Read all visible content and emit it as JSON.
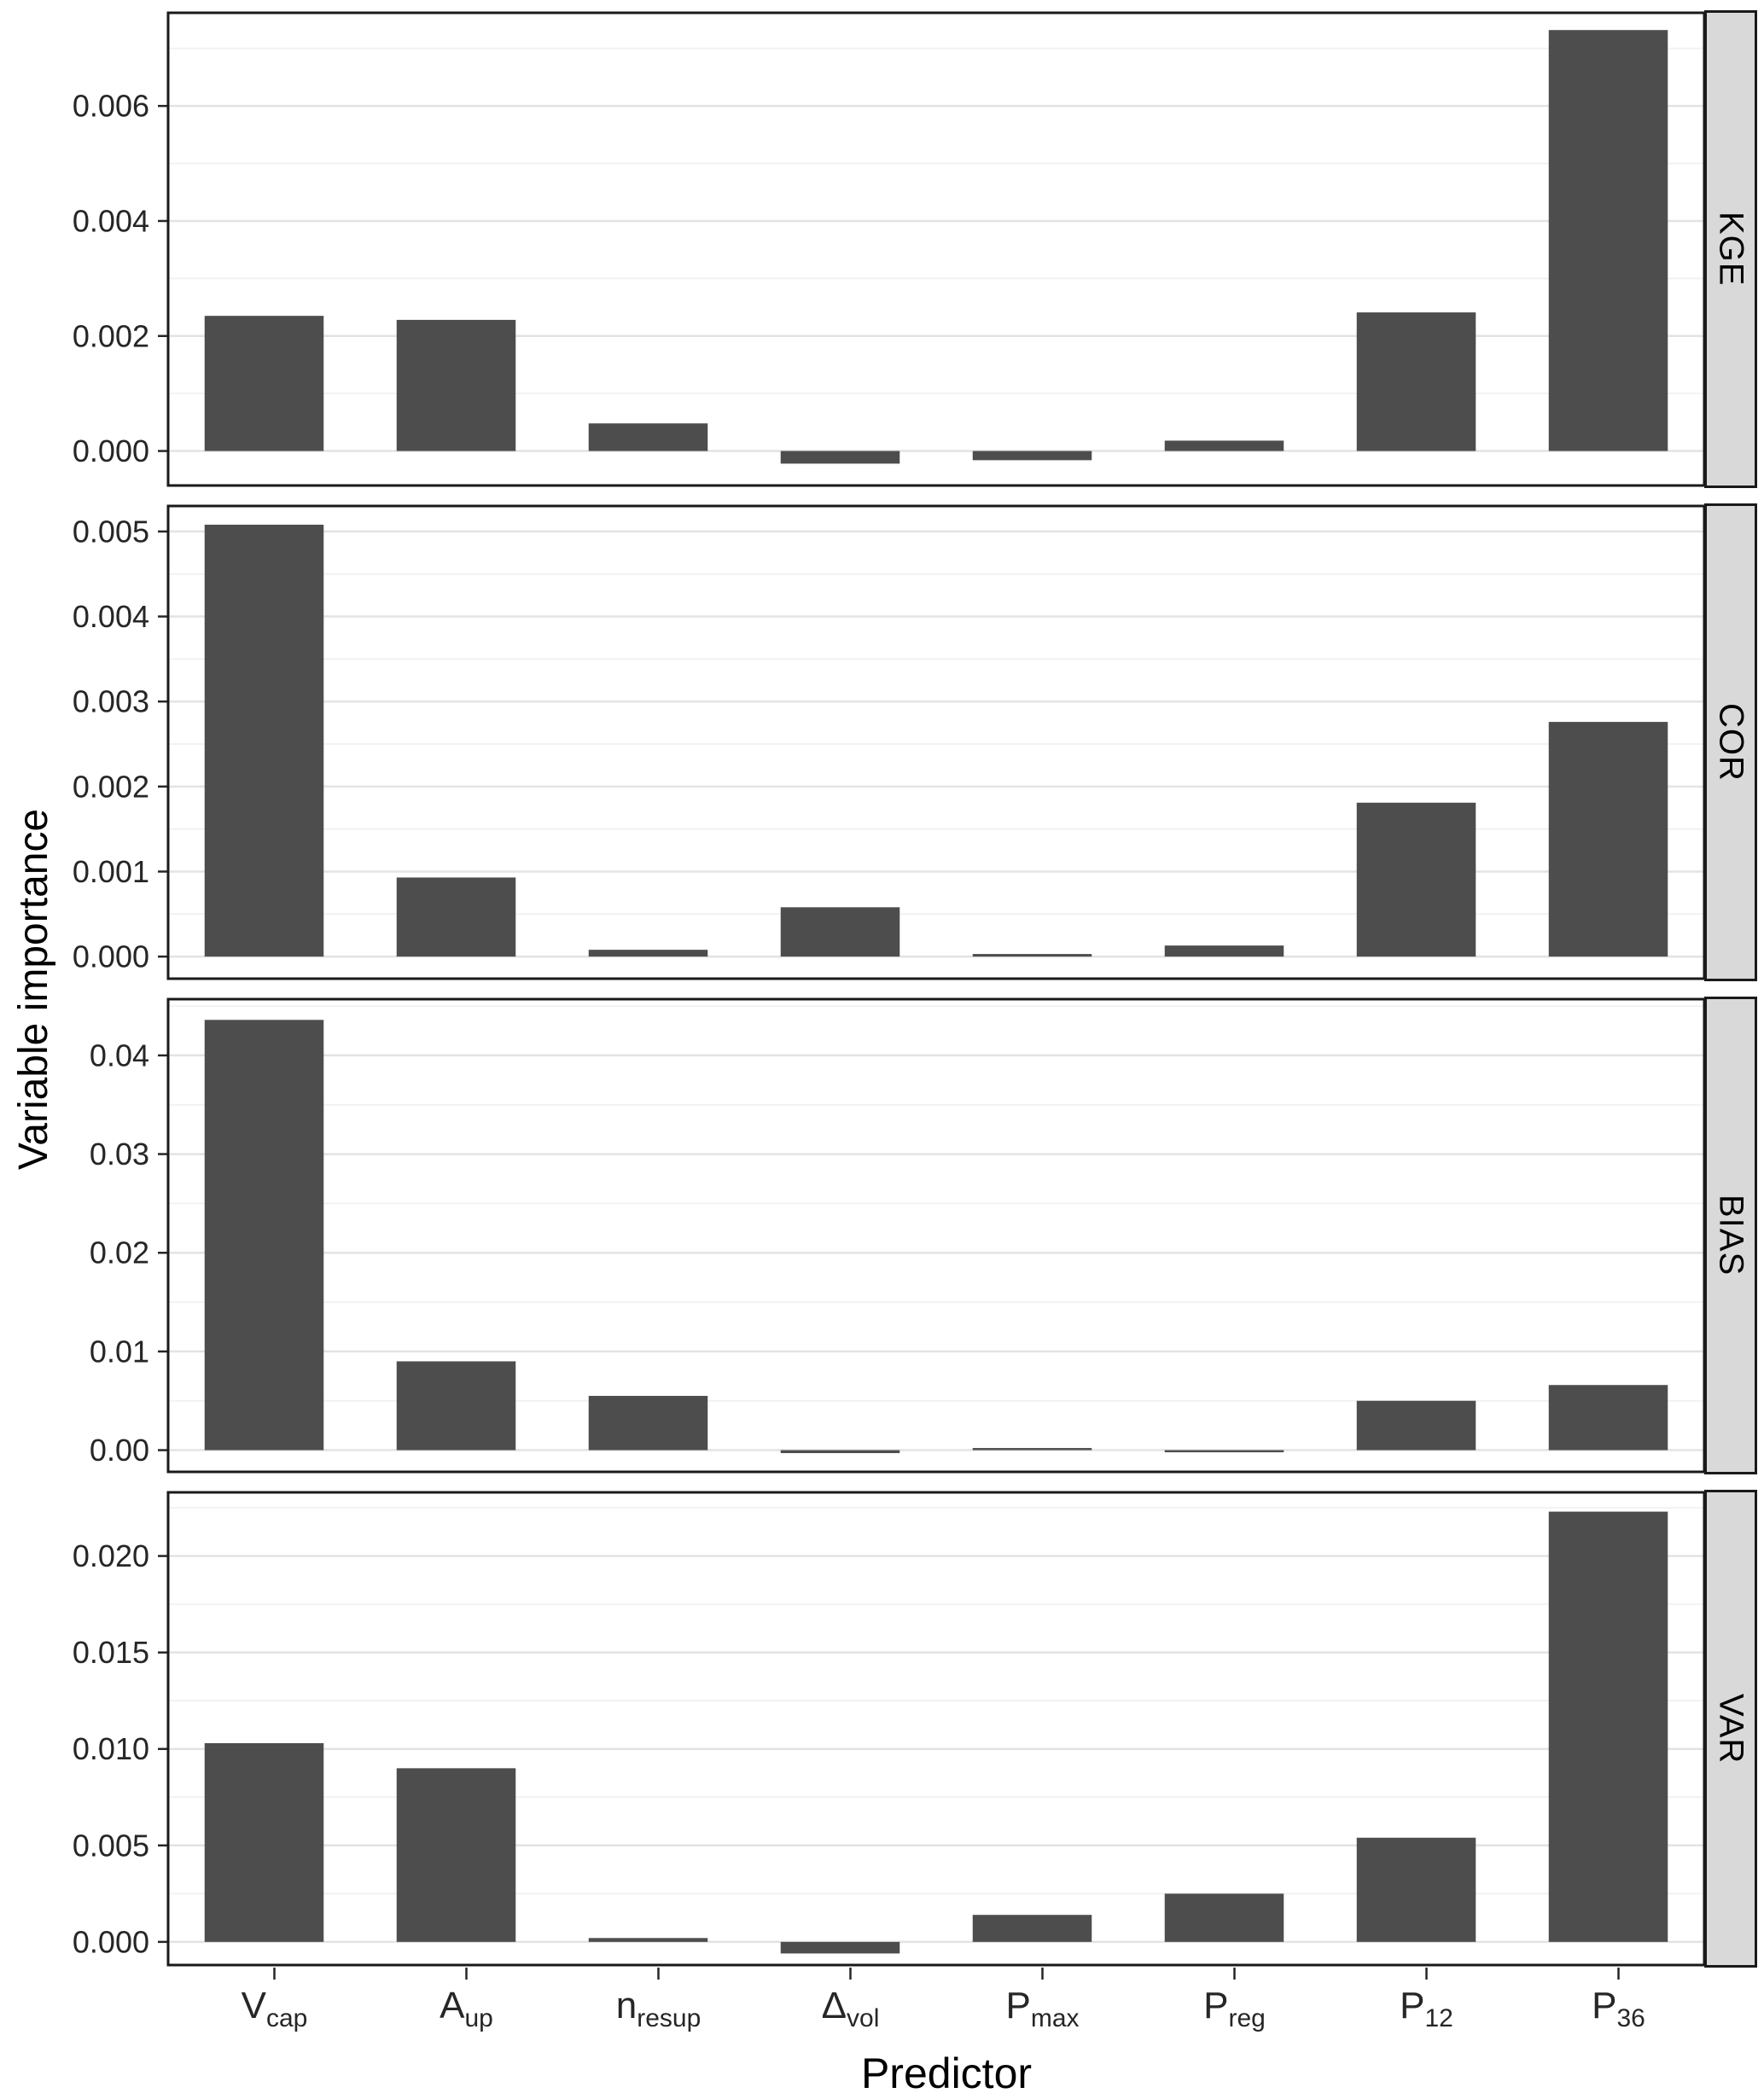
{
  "chart_data": {
    "type": "bar",
    "title": "",
    "xlabel": "Predictor",
    "ylabel": "Variable importance",
    "legend": "none",
    "grid": "on",
    "facet_labels": [
      "KGE",
      "COR",
      "BIAS",
      "VAR"
    ],
    "categories": [
      {
        "base": "V",
        "sub": "cap"
      },
      {
        "base": "A",
        "sub": "up"
      },
      {
        "base": "n",
        "sub": "resup"
      },
      {
        "base": "Δ",
        "sub": "vol"
      },
      {
        "base": "P",
        "sub": "max"
      },
      {
        "base": "P",
        "sub": "reg"
      },
      {
        "base": "P",
        "sub": "12"
      },
      {
        "base": "P",
        "sub": "36"
      }
    ],
    "colors": {
      "bar": "#4D4D4D",
      "strip_bg": "#D9D9D9",
      "grid_major": "#E3E3E3",
      "grid_minor": "#F2F2F2",
      "panel_border": "#1A1A1A",
      "axis_text": "#262626",
      "panel_bg": "#FFFFFF"
    },
    "panels": [
      {
        "label": "KGE",
        "ylim": [
          -0.0006,
          0.00762
        ],
        "ticks": [
          {
            "v": 0.0,
            "label": "0.000"
          },
          {
            "v": 0.002,
            "label": "0.002"
          },
          {
            "v": 0.004,
            "label": "0.004"
          },
          {
            "v": 0.006,
            "label": "0.006"
          }
        ],
        "minor": [
          0.001,
          0.003,
          0.005,
          0.007
        ],
        "values": [
          0.00235,
          0.00228,
          0.00048,
          -0.00022,
          -0.00016,
          0.00018,
          0.00241,
          0.00732
        ]
      },
      {
        "label": "COR",
        "ylim": [
          -0.00026,
          0.0053
        ],
        "ticks": [
          {
            "v": 0.0,
            "label": "0.000"
          },
          {
            "v": 0.001,
            "label": "0.001"
          },
          {
            "v": 0.002,
            "label": "0.002"
          },
          {
            "v": 0.003,
            "label": "0.003"
          },
          {
            "v": 0.004,
            "label": "0.004"
          },
          {
            "v": 0.005,
            "label": "0.005"
          }
        ],
        "minor": [
          0.0005,
          0.0015,
          0.0025,
          0.0035,
          0.0045
        ],
        "values": [
          0.00508,
          0.00093,
          8e-05,
          0.00058,
          3e-05,
          0.00013,
          0.00181,
          0.00276
        ]
      },
      {
        "label": "BIAS",
        "ylim": [
          -0.0022,
          0.0457
        ],
        "ticks": [
          {
            "v": 0.0,
            "label": "0.00"
          },
          {
            "v": 0.01,
            "label": "0.01"
          },
          {
            "v": 0.02,
            "label": "0.02"
          },
          {
            "v": 0.03,
            "label": "0.03"
          },
          {
            "v": 0.04,
            "label": "0.04"
          }
        ],
        "minor": [
          0.005,
          0.015,
          0.025,
          0.035,
          0.045
        ],
        "values": [
          0.0436,
          0.009,
          0.0055,
          -0.0003,
          0.0001,
          -0.0002,
          0.005,
          0.0066
        ]
      },
      {
        "label": "VAR",
        "ylim": [
          -0.0012,
          0.0233
        ],
        "ticks": [
          {
            "v": 0.0,
            "label": "0.000"
          },
          {
            "v": 0.005,
            "label": "0.005"
          },
          {
            "v": 0.01,
            "label": "0.010"
          },
          {
            "v": 0.015,
            "label": "0.015"
          },
          {
            "v": 0.02,
            "label": "0.020"
          }
        ],
        "minor": [
          0.0025,
          0.0075,
          0.0125,
          0.0175,
          0.0225
        ],
        "values": [
          0.0103,
          0.009,
          0.0002,
          -0.0006,
          0.0014,
          0.0025,
          0.0054,
          0.0223
        ]
      }
    ]
  }
}
